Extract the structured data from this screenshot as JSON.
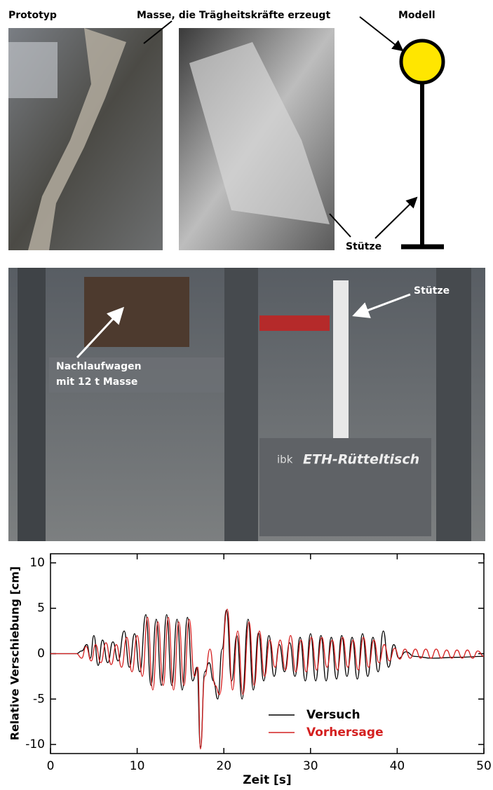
{
  "figure": {
    "prototype_label": "Prototyp",
    "mass_label": "Masse, die Trägheitskräfte erzeugt",
    "model_label": "Modell",
    "column_label": "Stütze"
  },
  "photo": {
    "column_label": "Stütze",
    "trailer_line1": "Nachlaufwagen",
    "trailer_line2": "mit 12 t Masse",
    "table_prefix": "ibk",
    "table_label": "ETH-Rütteltisch"
  },
  "chart_data": {
    "type": "line",
    "xlabel": "Zeit [s]",
    "ylabel": "Relative Verschiebung [cm]",
    "xlim": [
      0,
      50
    ],
    "ylim": [
      -11,
      11
    ],
    "xticks": [
      0,
      10,
      20,
      30,
      40,
      50
    ],
    "yticks": [
      -10,
      -5,
      0,
      5,
      10
    ],
    "legend": "lower center",
    "series": [
      {
        "name": "Versuch",
        "color": "#000000",
        "x": [
          0,
          3,
          3.6,
          4.2,
          4.6,
          5.0,
          5.5,
          6.0,
          6.6,
          7.2,
          7.8,
          8.5,
          9.1,
          9.7,
          10.3,
          11.0,
          11.6,
          12.2,
          12.8,
          13.4,
          14.0,
          14.6,
          15.2,
          15.8,
          16.4,
          16.9,
          17.3,
          17.8,
          18.3,
          18.8,
          19.3,
          19.8,
          20.3,
          20.9,
          21.5,
          22.1,
          22.8,
          23.4,
          24.0,
          24.6,
          25.2,
          25.8,
          26.4,
          27.0,
          27.6,
          28.2,
          28.8,
          29.4,
          30.0,
          30.6,
          31.2,
          31.8,
          32.4,
          33.0,
          33.6,
          34.2,
          34.8,
          35.4,
          36.0,
          36.6,
          37.2,
          37.8,
          38.4,
          39.0,
          39.6,
          40.2,
          41.0,
          42.0,
          44,
          47,
          50
        ],
        "values": [
          0,
          0,
          0.3,
          1.0,
          -0.5,
          2.0,
          -1.3,
          1.5,
          -1.0,
          1.3,
          -0.8,
          2.5,
          -1.5,
          2.2,
          -2.0,
          4.3,
          -3.5,
          3.8,
          -3.5,
          4.3,
          -3.5,
          3.8,
          -4.0,
          4.0,
          -3.0,
          -1.5,
          -10.3,
          -2.0,
          -1.0,
          -3.0,
          -5.0,
          0.5,
          4.8,
          -3.0,
          2.0,
          -5.0,
          3.8,
          -4.0,
          2.3,
          -3.0,
          2.0,
          -2.5,
          1.0,
          -2.0,
          1.2,
          -2.5,
          1.8,
          -3.0,
          2.2,
          -3.0,
          2.0,
          -3.0,
          1.8,
          -2.8,
          2.0,
          -2.5,
          1.8,
          -2.8,
          2.2,
          -2.5,
          1.8,
          -2.0,
          2.5,
          -1.5,
          1.0,
          -0.5,
          0.2,
          -0.3,
          -0.5,
          -0.4,
          -0.3
        ]
      },
      {
        "name": "Vorhersage",
        "color": "#d42020",
        "x": [
          0,
          3,
          3.6,
          4.1,
          4.7,
          5.2,
          5.8,
          6.4,
          7.0,
          7.6,
          8.2,
          8.8,
          9.4,
          10.0,
          10.6,
          11.2,
          11.8,
          12.4,
          13.0,
          13.6,
          14.2,
          14.8,
          15.4,
          16.0,
          16.6,
          17.0,
          17.3,
          17.8,
          18.4,
          19.0,
          19.5,
          20.4,
          21.0,
          21.6,
          22.2,
          22.9,
          23.5,
          24.1,
          24.7,
          25.3,
          25.9,
          26.5,
          27.1,
          27.7,
          28.3,
          28.9,
          29.5,
          30.1,
          30.7,
          31.3,
          31.9,
          32.5,
          33.1,
          33.7,
          34.3,
          34.9,
          35.5,
          36.1,
          36.7,
          37.3,
          37.9,
          38.5,
          39.1,
          39.7,
          40.3,
          40.9,
          41.5,
          42.1,
          42.7,
          43.3,
          43.9,
          44.5,
          45.1,
          45.7,
          46.3,
          46.9,
          47.5,
          48.1,
          48.7,
          49.3,
          50
        ],
        "values": [
          0,
          0,
          -0.5,
          0.8,
          -0.8,
          1.0,
          -1.0,
          1.2,
          -1.2,
          1.0,
          -1.5,
          1.8,
          -2.0,
          2.0,
          -2.5,
          4.0,
          -4.0,
          3.5,
          -3.5,
          4.0,
          -4.0,
          3.5,
          -3.5,
          3.8,
          -2.5,
          -1.5,
          -10.5,
          -2.5,
          0.5,
          -3.5,
          -4.5,
          4.9,
          -4.0,
          2.5,
          -4.5,
          3.5,
          -3.5,
          2.5,
          -2.5,
          1.5,
          -1.5,
          1.5,
          -1.8,
          2.0,
          -2.0,
          1.5,
          -2.0,
          1.8,
          -1.8,
          1.8,
          -1.5,
          1.5,
          -1.8,
          1.8,
          -1.5,
          1.5,
          -1.8,
          1.8,
          -1.5,
          1.5,
          -1.0,
          1.0,
          -0.8,
          0.6,
          -0.6,
          0.5,
          -0.5,
          0.5,
          -0.5,
          0.5,
          -0.5,
          0.5,
          -0.5,
          0.4,
          -0.5,
          0.4,
          -0.5,
          0.4,
          -0.5,
          0.3,
          -0.3
        ]
      }
    ]
  }
}
